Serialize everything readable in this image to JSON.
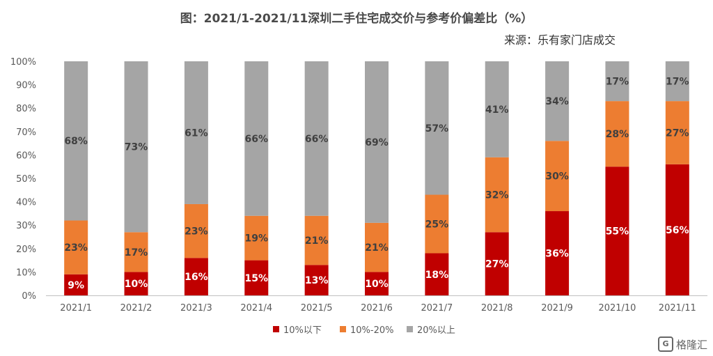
{
  "chart_data": {
    "type": "bar",
    "stacked": true,
    "title": "图：2021/1-2021/11深圳二手住宅成交价与参考价偏差比（%）",
    "source": "来源：乐有家门店成交",
    "categories": [
      "2021/1",
      "2021/2",
      "2021/3",
      "2021/4",
      "2021/5",
      "2021/6",
      "2021/7",
      "2021/8",
      "2021/9",
      "2021/10",
      "2021/11"
    ],
    "series": [
      {
        "name": "10%以下",
        "color": "#c00000",
        "label_color": "#ffffff",
        "values": [
          9,
          10,
          16,
          15,
          13,
          10,
          18,
          27,
          36,
          55,
          56
        ],
        "labels": [
          "9%",
          "10%",
          "16%",
          "15%",
          "13%",
          "10%",
          "18%",
          "27%",
          "36%",
          "55%",
          "56%"
        ]
      },
      {
        "name": "10%-20%",
        "color": "#ed7d31",
        "label_color": "#404040",
        "values": [
          23,
          17,
          23,
          19,
          21,
          21,
          25,
          32,
          30,
          28,
          27
        ],
        "labels": [
          "23%",
          "17%",
          "23%",
          "19%",
          "21%",
          "21%",
          "25%",
          "32%",
          "30%",
          "28%",
          "27%"
        ]
      },
      {
        "name": "20%以上",
        "color": "#a5a5a5",
        "label_color": "#404040",
        "values": [
          68,
          73,
          61,
          66,
          66,
          69,
          57,
          41,
          34,
          17,
          17
        ],
        "labels": [
          "68%",
          "73%",
          "61%",
          "66%",
          "66%",
          "69%",
          "57%",
          "41%",
          "34%",
          "17%",
          "17%"
        ]
      }
    ],
    "ylim": [
      0,
      100
    ],
    "yticks": [
      "0%",
      "10%",
      "20%",
      "30%",
      "40%",
      "50%",
      "60%",
      "70%",
      "80%",
      "90%",
      "100%"
    ],
    "grid": false,
    "legend_position": "bottom"
  },
  "brand": {
    "text": "格隆汇",
    "logo": "G"
  }
}
